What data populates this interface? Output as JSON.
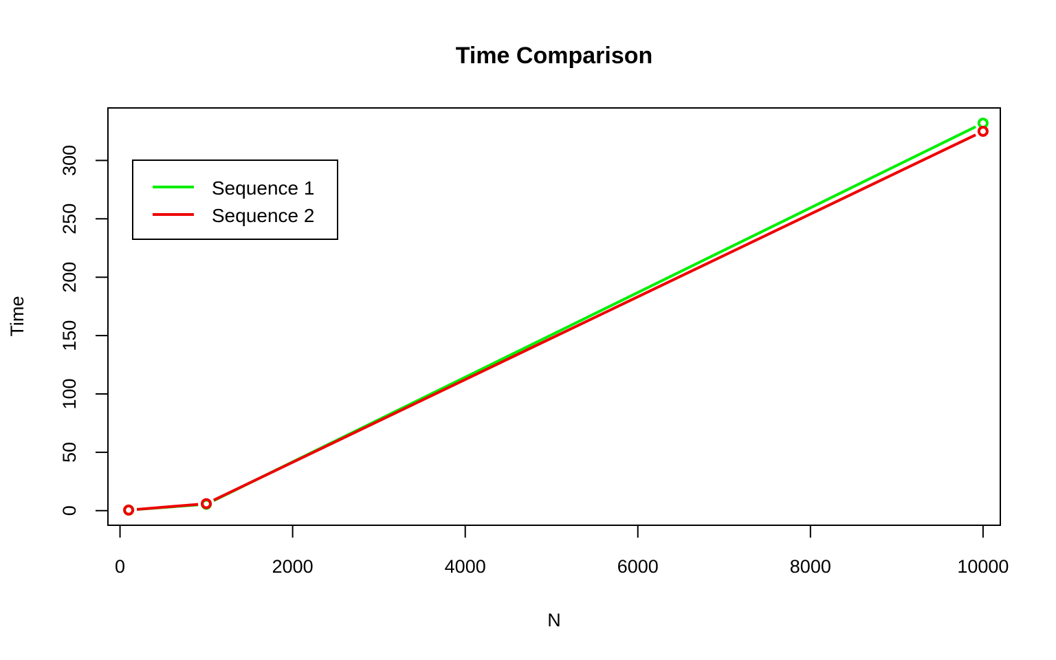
{
  "chart_data": {
    "type": "line",
    "title": "Time Comparison",
    "xlabel": "N",
    "ylabel": "Time",
    "xlim": [
      -140,
      10200
    ],
    "ylim": [
      -12.5,
      345
    ],
    "xticks": [
      0,
      2000,
      4000,
      6000,
      8000,
      10000
    ],
    "yticks": [
      0,
      50,
      100,
      150,
      200,
      250,
      300
    ],
    "grid": false,
    "legend_position": "top-left",
    "series": [
      {
        "name": "Sequence 1",
        "color": "#00ee00",
        "x": [
          100,
          1000,
          10000
        ],
        "y": [
          0.5,
          5.5,
          332
        ]
      },
      {
        "name": "Sequence 2",
        "color": "#ee0000",
        "x": [
          100,
          1000,
          10000
        ],
        "y": [
          0.5,
          6,
          325
        ]
      }
    ]
  }
}
